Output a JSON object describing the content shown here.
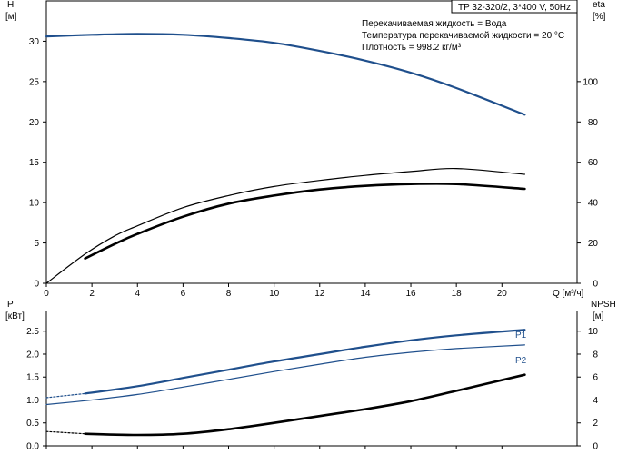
{
  "model_label": "TP 32-320/2, 3*400 V, 50Hz",
  "info": [
    "Перекачиваемая жидкость = Вода",
    "Температура перекачиваемой жидкости = 20 °C",
    "Плотность = 998.2 кг/м³"
  ],
  "colors": {
    "blue": "#1f4f8c",
    "black": "#000000"
  },
  "chart_data": [
    {
      "type": "line",
      "grid": false,
      "xlabel": "Q [м³/ч]",
      "x_ticks": [
        "0",
        "2",
        "4",
        "6",
        "8",
        "10",
        "12",
        "14",
        "16",
        "18",
        "20"
      ],
      "xlim": [
        0,
        23.3
      ],
      "left_axis": {
        "label_top": "H",
        "label_unit": "[м]",
        "ticks": [
          "0",
          "5",
          "10",
          "15",
          "20",
          "25",
          "30"
        ],
        "lim": [
          0,
          35
        ]
      },
      "right_axis": {
        "label_top": "eta",
        "label_unit": "[%]",
        "ticks": [
          "0",
          "20",
          "40",
          "60",
          "80",
          "100"
        ],
        "lim": [
          0,
          140
        ]
      },
      "series": [
        {
          "key": "H",
          "axis": "left",
          "color": "blue",
          "width": 2.2,
          "style": "solid",
          "x": [
            0,
            2,
            4,
            6,
            8,
            10,
            12,
            14,
            16,
            18,
            21
          ],
          "y": [
            30.6,
            30.8,
            30.9,
            30.8,
            30.4,
            29.8,
            28.8,
            27.6,
            26.1,
            24.2,
            20.9
          ]
        },
        {
          "key": "H",
          "axis": "left",
          "color": "blue",
          "width": 1.2,
          "style": "dashed",
          "x": [
            0,
            1.7
          ],
          "y": [
            30.6,
            30.8
          ]
        },
        {
          "key": "eta",
          "axis": "right",
          "color": "black",
          "width": 2.6,
          "style": "solid",
          "x": [
            1.7,
            3,
            4,
            6,
            8,
            10,
            12,
            14,
            16,
            18,
            21
          ],
          "y": [
            12.3,
            19.5,
            24.5,
            33,
            39.5,
            43.5,
            46.5,
            48.3,
            49.2,
            49.2,
            46.8
          ]
        },
        {
          "key": "eta",
          "axis": "right",
          "color": "black",
          "width": 1.2,
          "style": "solid",
          "x": [
            0,
            1.7,
            3,
            4,
            6,
            8,
            10,
            12,
            14,
            16,
            18,
            21
          ],
          "y": [
            0,
            14.5,
            23.5,
            28.5,
            37.5,
            43.5,
            48,
            51,
            53.5,
            55.4,
            56.9,
            54
          ]
        }
      ]
    },
    {
      "type": "line",
      "grid": false,
      "xlim": [
        0,
        23.3
      ],
      "left_axis": {
        "label_top": "P",
        "label_unit": "[кВт]",
        "ticks": [
          "0.0",
          "0.5",
          "1.0",
          "1.5",
          "2.0",
          "2.5"
        ],
        "lim": [
          0,
          2.95
        ]
      },
      "right_axis": {
        "label_top": "NPSH",
        "label_unit": "[м]",
        "ticks": [
          "0",
          "2",
          "4",
          "6",
          "8",
          "10"
        ],
        "lim": [
          0,
          11.8
        ]
      },
      "series": [
        {
          "key": "P1",
          "name": "P1",
          "axis": "left",
          "color": "blue",
          "width": 2.2,
          "style": "solid",
          "x": [
            1.7,
            4,
            6,
            8,
            10,
            12,
            14,
            16,
            18,
            21
          ],
          "y": [
            1.14,
            1.3,
            1.48,
            1.66,
            1.84,
            2.0,
            2.16,
            2.3,
            2.41,
            2.53
          ]
        },
        {
          "key": "P1",
          "axis": "left",
          "color": "blue",
          "width": 1.2,
          "style": "dashed",
          "x": [
            0,
            1.7
          ],
          "y": [
            1.05,
            1.14
          ]
        },
        {
          "key": "P2",
          "name": "P2",
          "axis": "left",
          "color": "blue",
          "width": 1.2,
          "style": "solid",
          "x": [
            0,
            2,
            4,
            6,
            8,
            10,
            12,
            14,
            16,
            18,
            21
          ],
          "y": [
            0.9,
            1.0,
            1.12,
            1.28,
            1.45,
            1.62,
            1.78,
            1.93,
            2.04,
            2.12,
            2.2
          ]
        },
        {
          "key": "NPSH",
          "axis": "right",
          "color": "black",
          "width": 2.6,
          "style": "solid",
          "x": [
            1.7,
            4,
            6,
            8,
            10,
            12,
            14,
            16,
            18,
            21
          ],
          "y": [
            1.05,
            0.95,
            1.05,
            1.45,
            2.0,
            2.6,
            3.2,
            3.9,
            4.8,
            6.2
          ]
        },
        {
          "key": "NPSH",
          "axis": "right",
          "color": "black",
          "width": 1.2,
          "style": "dashed",
          "x": [
            0,
            1.7
          ],
          "y": [
            1.25,
            1.05
          ]
        }
      ]
    }
  ]
}
